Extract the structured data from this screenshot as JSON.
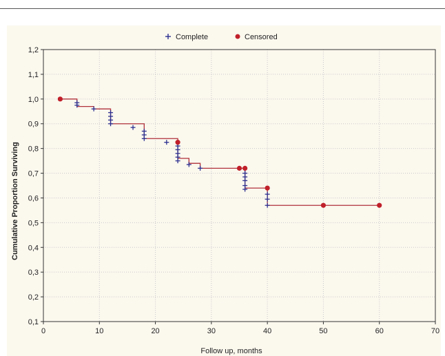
{
  "chart_data": {
    "type": "line",
    "xlabel": "Follow up, months",
    "ylabel": "Cumulative Proportion Surviving",
    "xlim": [
      0,
      70
    ],
    "ylim": [
      0.1,
      1.2
    ],
    "x_ticks": [
      "0",
      "10",
      "20",
      "30",
      "40",
      "50",
      "60",
      "70"
    ],
    "y_ticks": [
      "0,1",
      "0,2",
      "0,3",
      "0,4",
      "0,5",
      "0,6",
      "0,7",
      "0,8",
      "0,9",
      "1,0",
      "1,1",
      "1,2"
    ],
    "grid": true,
    "legend_position": "top-center",
    "legend": [
      {
        "label": "Complete",
        "marker": "plus",
        "color": "#2b2f8f"
      },
      {
        "label": "Censored",
        "marker": "dot",
        "color": "#c0202a"
      }
    ],
    "line_color": "#b0303a",
    "series": [
      {
        "name": "Complete",
        "points": [
          [
            6,
            0.985
          ],
          [
            6,
            0.975
          ],
          [
            9,
            0.96
          ],
          [
            12,
            0.945
          ],
          [
            12,
            0.93
          ],
          [
            12,
            0.915
          ],
          [
            12,
            0.9
          ],
          [
            16,
            0.885
          ],
          [
            18,
            0.87
          ],
          [
            18,
            0.855
          ],
          [
            18,
            0.84
          ],
          [
            22,
            0.825
          ],
          [
            24,
            0.81
          ],
          [
            24,
            0.795
          ],
          [
            24,
            0.78
          ],
          [
            24,
            0.765
          ],
          [
            24,
            0.75
          ],
          [
            26,
            0.735
          ],
          [
            28,
            0.72
          ],
          [
            36,
            0.7
          ],
          [
            36,
            0.685
          ],
          [
            36,
            0.67
          ],
          [
            36,
            0.65
          ],
          [
            36,
            0.635
          ],
          [
            40,
            0.615
          ],
          [
            40,
            0.595
          ],
          [
            40,
            0.57
          ]
        ]
      },
      {
        "name": "Censored",
        "points": [
          [
            3,
            1.0
          ],
          [
            24,
            0.825
          ],
          [
            35,
            0.72
          ],
          [
            36,
            0.72
          ],
          [
            40,
            0.64
          ],
          [
            50,
            0.57
          ],
          [
            60,
            0.57
          ]
        ]
      }
    ],
    "step_curve": [
      [
        3,
        1.0
      ],
      [
        6,
        1.0
      ],
      [
        6,
        0.97
      ],
      [
        9,
        0.97
      ],
      [
        9,
        0.96
      ],
      [
        12,
        0.96
      ],
      [
        12,
        0.9
      ],
      [
        18,
        0.9
      ],
      [
        18,
        0.88
      ],
      [
        18,
        0.84
      ],
      [
        24,
        0.84
      ],
      [
        24,
        0.825
      ],
      [
        24,
        0.76
      ],
      [
        26,
        0.76
      ],
      [
        26,
        0.74
      ],
      [
        28,
        0.74
      ],
      [
        28,
        0.72
      ],
      [
        36,
        0.72
      ],
      [
        36,
        0.64
      ],
      [
        40,
        0.64
      ],
      [
        40,
        0.57
      ],
      [
        60,
        0.57
      ]
    ]
  }
}
